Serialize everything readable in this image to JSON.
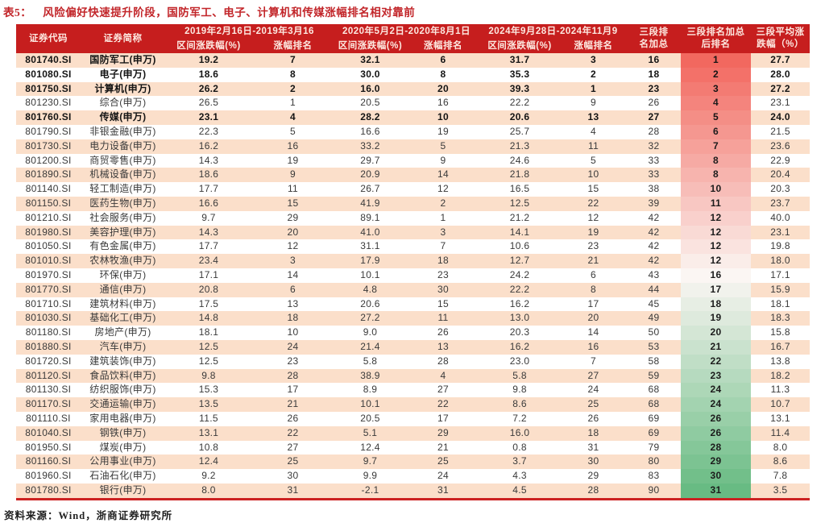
{
  "title": {
    "prefix": "表5：",
    "text": "风险偏好快速提升阶段，国防军工、电子、计算机和传媒涨幅排名相对靠前"
  },
  "footer": {
    "source_label": "资料来源：",
    "source_text": "Wind，浙商证券研究所"
  },
  "colors": {
    "header_bg": "#c61e1e",
    "header_text": "#fde9e1",
    "stripe": "#fbdfca",
    "title_red": "#c2262a",
    "red_line": "#cc2222",
    "rank_gradient_top": "#f2685f",
    "rank_gradient_mid": "#fbf6f3",
    "rank_gradient_bottom": "#68bb83"
  },
  "table": {
    "headers": {
      "code": "证券代码",
      "name": "证券简称",
      "period1": "2019年2月16日-2019年3月16",
      "period2": "2020年5月2日-2020年8月1日",
      "period3": "2024年9月28日-2024年11月9",
      "chg": "区间涨跌幅(%)",
      "rank": "涨幅排名",
      "sum_l1": "三段排",
      "sum_l2": "名加总",
      "final_l1": "三段排名加总",
      "final_l2": "后排名",
      "avg_l1": "三段平均涨",
      "avg_l2": "跌幅（%）"
    },
    "rows": [
      [
        "801740.SI",
        "国防军工(申万)",
        "19.2",
        "7",
        "32.1",
        "6",
        "31.7",
        "3",
        "16",
        "1",
        "27.7",
        true
      ],
      [
        "801080.SI",
        "电子(申万)",
        "18.6",
        "8",
        "30.0",
        "8",
        "35.3",
        "2",
        "18",
        "2",
        "28.0",
        true
      ],
      [
        "801750.SI",
        "计算机(申万)",
        "26.2",
        "2",
        "16.0",
        "20",
        "39.3",
        "1",
        "23",
        "3",
        "27.2",
        true
      ],
      [
        "801230.SI",
        "综合(申万)",
        "26.5",
        "1",
        "20.5",
        "16",
        "22.2",
        "9",
        "26",
        "4",
        "23.1",
        false
      ],
      [
        "801760.SI",
        "传媒(申万)",
        "23.1",
        "4",
        "28.2",
        "10",
        "20.6",
        "13",
        "27",
        "5",
        "24.0",
        true
      ],
      [
        "801790.SI",
        "非银金融(申万)",
        "22.3",
        "5",
        "16.6",
        "19",
        "25.7",
        "4",
        "28",
        "6",
        "21.5",
        false
      ],
      [
        "801730.SI",
        "电力设备(申万)",
        "16.2",
        "16",
        "33.2",
        "5",
        "21.3",
        "11",
        "32",
        "7",
        "23.6",
        false
      ],
      [
        "801200.SI",
        "商贸零售(申万)",
        "14.3",
        "19",
        "29.7",
        "9",
        "24.6",
        "5",
        "33",
        "8",
        "22.9",
        false
      ],
      [
        "801890.SI",
        "机械设备(申万)",
        "18.6",
        "9",
        "20.9",
        "14",
        "21.8",
        "10",
        "33",
        "8",
        "20.4",
        false
      ],
      [
        "801140.SI",
        "轻工制造(申万)",
        "17.7",
        "11",
        "26.7",
        "12",
        "16.5",
        "15",
        "38",
        "10",
        "20.3",
        false
      ],
      [
        "801150.SI",
        "医药生物(申万)",
        "16.6",
        "15",
        "41.9",
        "2",
        "12.5",
        "22",
        "39",
        "11",
        "23.7",
        false
      ],
      [
        "801210.SI",
        "社会服务(申万)",
        "9.7",
        "29",
        "89.1",
        "1",
        "21.2",
        "12",
        "42",
        "12",
        "40.0",
        false
      ],
      [
        "801980.SI",
        "美容护理(申万)",
        "14.3",
        "20",
        "41.0",
        "3",
        "14.1",
        "19",
        "42",
        "12",
        "23.1",
        false
      ],
      [
        "801050.SI",
        "有色金属(申万)",
        "17.7",
        "12",
        "31.1",
        "7",
        "10.6",
        "23",
        "42",
        "12",
        "19.8",
        false
      ],
      [
        "801010.SI",
        "农林牧渔(申万)",
        "23.4",
        "3",
        "17.9",
        "18",
        "12.7",
        "21",
        "42",
        "12",
        "18.0",
        false
      ],
      [
        "801970.SI",
        "环保(申万)",
        "17.1",
        "14",
        "10.1",
        "23",
        "24.2",
        "6",
        "43",
        "16",
        "17.1",
        false
      ],
      [
        "801770.SI",
        "通信(申万)",
        "20.8",
        "6",
        "4.8",
        "30",
        "22.2",
        "8",
        "44",
        "17",
        "15.9",
        false
      ],
      [
        "801710.SI",
        "建筑材料(申万)",
        "17.5",
        "13",
        "20.6",
        "15",
        "16.2",
        "17",
        "45",
        "18",
        "18.1",
        false
      ],
      [
        "801030.SI",
        "基础化工(申万)",
        "14.8",
        "18",
        "27.2",
        "11",
        "13.0",
        "20",
        "49",
        "19",
        "18.3",
        false
      ],
      [
        "801180.SI",
        "房地产(申万)",
        "18.1",
        "10",
        "9.0",
        "26",
        "20.3",
        "14",
        "50",
        "20",
        "15.8",
        false
      ],
      [
        "801880.SI",
        "汽车(申万)",
        "12.5",
        "24",
        "21.4",
        "13",
        "16.2",
        "16",
        "53",
        "21",
        "16.7",
        false
      ],
      [
        "801720.SI",
        "建筑装饰(申万)",
        "12.5",
        "23",
        "5.8",
        "28",
        "23.0",
        "7",
        "58",
        "22",
        "13.8",
        false
      ],
      [
        "801120.SI",
        "食品饮料(申万)",
        "9.8",
        "28",
        "38.9",
        "4",
        "5.8",
        "27",
        "59",
        "23",
        "18.2",
        false
      ],
      [
        "801130.SI",
        "纺织服饰(申万)",
        "15.3",
        "17",
        "8.9",
        "27",
        "9.8",
        "24",
        "68",
        "24",
        "11.3",
        false
      ],
      [
        "801170.SI",
        "交通运输(申万)",
        "13.5",
        "21",
        "10.1",
        "22",
        "8.6",
        "25",
        "68",
        "24",
        "10.7",
        false
      ],
      [
        "801110.SI",
        "家用电器(申万)",
        "11.5",
        "26",
        "20.5",
        "17",
        "7.2",
        "26",
        "69",
        "26",
        "13.1",
        false
      ],
      [
        "801040.SI",
        "钢铁(申万)",
        "13.1",
        "22",
        "5.1",
        "29",
        "16.0",
        "18",
        "69",
        "26",
        "11.4",
        false
      ],
      [
        "801950.SI",
        "煤炭(申万)",
        "10.8",
        "27",
        "12.4",
        "21",
        "0.8",
        "31",
        "79",
        "28",
        "8.0",
        false
      ],
      [
        "801160.SI",
        "公用事业(申万)",
        "12.4",
        "25",
        "9.7",
        "25",
        "3.7",
        "30",
        "80",
        "29",
        "8.6",
        false
      ],
      [
        "801960.SI",
        "石油石化(申万)",
        "9.2",
        "30",
        "9.9",
        "24",
        "4.3",
        "29",
        "83",
        "30",
        "7.8",
        false
      ],
      [
        "801780.SI",
        "银行(申万)",
        "8.0",
        "31",
        "-2.1",
        "31",
        "4.5",
        "28",
        "90",
        "31",
        "3.5",
        false
      ]
    ]
  }
}
